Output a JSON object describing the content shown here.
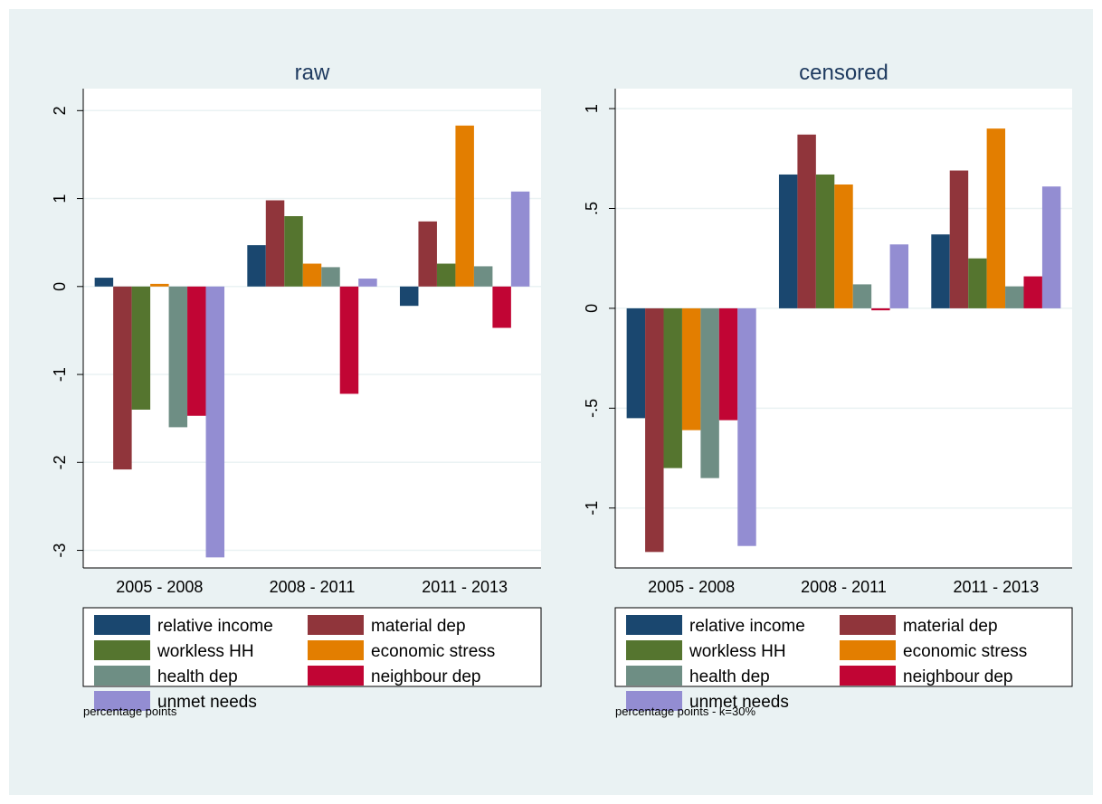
{
  "chart_data": [
    {
      "type": "bar",
      "title": "raw",
      "categories": [
        "2005 - 2008",
        "2008 - 2011",
        "2011 - 2013"
      ],
      "ylim": [
        -3.2,
        2.25
      ],
      "yticks": [
        2,
        1,
        0,
        -1,
        -2,
        -3
      ],
      "ytick_labels": [
        "2",
        "1",
        "0",
        "-1",
        "-2",
        "-3"
      ],
      "grid": true,
      "legend_position": "bottom",
      "note": "percentage points",
      "series": [
        {
          "name": "relative income",
          "color": "#1a476f",
          "values": [
            0.1,
            0.47,
            -0.22
          ]
        },
        {
          "name": "material dep",
          "color": "#90353b",
          "values": [
            -2.08,
            0.98,
            0.74
          ]
        },
        {
          "name": "workless HH",
          "color": "#55752f",
          "values": [
            -1.4,
            0.8,
            0.26
          ]
        },
        {
          "name": "economic stress",
          "color": "#e37e00",
          "values": [
            0.03,
            0.26,
            1.83
          ]
        },
        {
          "name": "health dep",
          "color": "#6e8e84",
          "values": [
            -1.6,
            0.22,
            0.23
          ]
        },
        {
          "name": "neighbour dep",
          "color": "#c10534",
          "values": [
            -1.47,
            -1.22,
            -0.47
          ]
        },
        {
          "name": "unmet needs",
          "color": "#938dd2",
          "values": [
            -3.08,
            0.09,
            1.08
          ]
        }
      ]
    },
    {
      "type": "bar",
      "title": "censored",
      "categories": [
        "2005 - 2008",
        "2008 - 2011",
        "2011 - 2013"
      ],
      "ylim": [
        -1.3,
        1.1
      ],
      "yticks": [
        1,
        0.5,
        0,
        -0.5,
        -1
      ],
      "ytick_labels": [
        "1",
        ".5",
        "0",
        "-.5",
        "-1"
      ],
      "grid": true,
      "legend_position": "bottom",
      "note": "percentage points - k=30%",
      "series": [
        {
          "name": "relative income",
          "color": "#1a476f",
          "values": [
            -0.55,
            0.67,
            0.37
          ]
        },
        {
          "name": "material dep",
          "color": "#90353b",
          "values": [
            -1.22,
            0.87,
            0.69
          ]
        },
        {
          "name": "workless HH",
          "color": "#55752f",
          "values": [
            -0.8,
            0.67,
            0.25
          ]
        },
        {
          "name": "economic stress",
          "color": "#e37e00",
          "values": [
            -0.61,
            0.62,
            0.9
          ]
        },
        {
          "name": "health dep",
          "color": "#6e8e84",
          "values": [
            -0.85,
            0.12,
            0.11
          ]
        },
        {
          "name": "neighbour dep",
          "color": "#c10534",
          "values": [
            -0.56,
            -0.01,
            0.16
          ]
        },
        {
          "name": "unmet needs",
          "color": "#938dd2",
          "values": [
            -1.19,
            0.32,
            0.61
          ]
        }
      ]
    }
  ]
}
